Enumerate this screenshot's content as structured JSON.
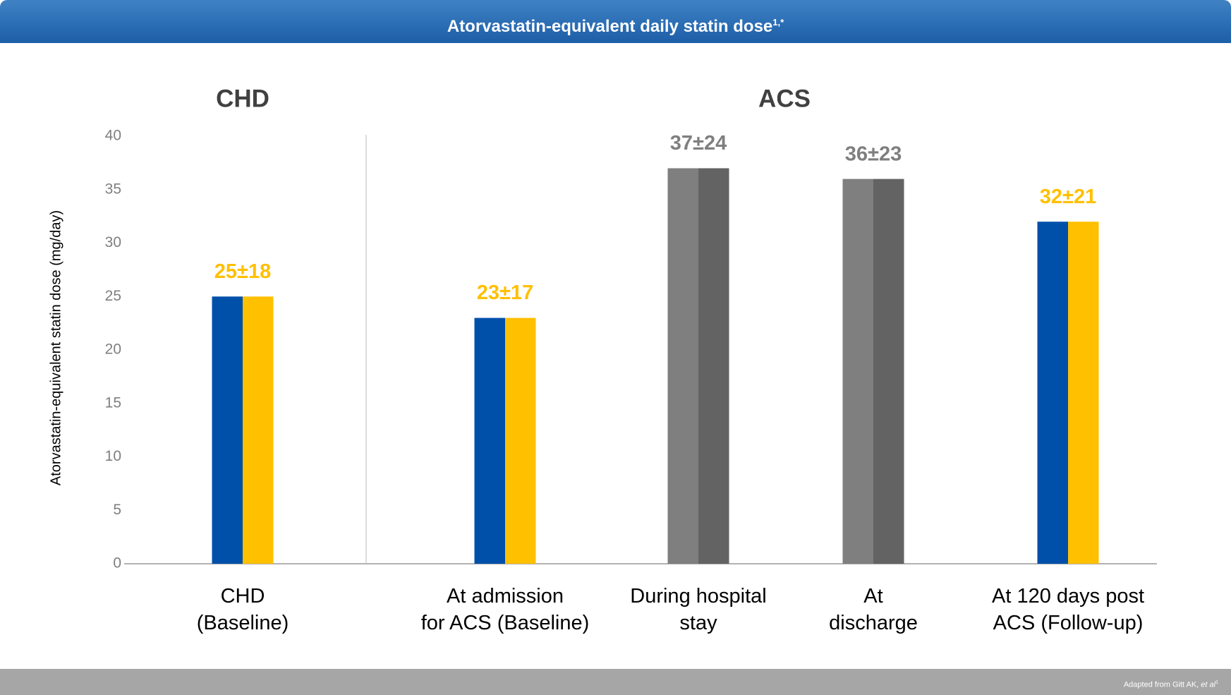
{
  "header": {
    "title": "Atorvastatin-equivalent daily statin dose",
    "superscript": "1,*"
  },
  "chart_data": {
    "type": "bar",
    "groups": [
      {
        "label": "CHD",
        "from": 0,
        "to": 0
      },
      {
        "label": "ACS",
        "from": 1,
        "to": 4
      }
    ],
    "y_label": "Atorvastatin-equivalent statin dose (mg/day)",
    "categories": [
      "CHD\n(Baseline)",
      "At admission\nfor ACS (Baseline)",
      "During hospital\nstay",
      "At\ndischarge",
      "At 120 days post\nACS (Follow-up)"
    ],
    "values": [
      25,
      23,
      37,
      36,
      32
    ],
    "value_labels": [
      "25±18",
      "23±17",
      "37±24",
      "36±23",
      "32±21"
    ],
    "colors": [
      [
        "#0050aa",
        "#ffc000"
      ],
      [
        "#0050aa",
        "#ffc000"
      ],
      [
        "#7f7f7f",
        "#636363"
      ],
      [
        "#7f7f7f",
        "#636363"
      ],
      [
        "#0050aa",
        "#ffc000"
      ]
    ],
    "label_colors": [
      "#ffc000",
      "#ffc000",
      "#7f7f7f",
      "#7f7f7f",
      "#ffc000"
    ],
    "ylim": [
      0,
      40
    ],
    "yticks": [
      0,
      5,
      10,
      15,
      20,
      25,
      30,
      35,
      40
    ],
    "grid": false
  },
  "footer": {
    "text": "Adapted from Gitt AK, ",
    "italic": "et al",
    "superscript": "1"
  }
}
